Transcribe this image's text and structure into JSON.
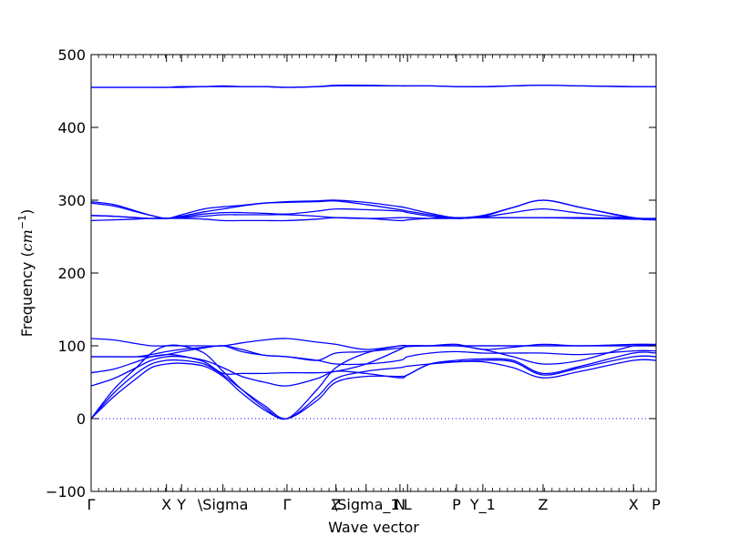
{
  "chart_data": {
    "type": "line",
    "title": "",
    "xlabel": "Wave vector",
    "ylabel_prefix": "Frequency (",
    "ylabel_unit": "cm",
    "ylabel_exp": "−1",
    "ylabel_suffix": ")",
    "ylim": [
      -100,
      500
    ],
    "yticks": [
      -100,
      0,
      100,
      200,
      300,
      400,
      500
    ],
    "xlim": [
      0,
      7.5
    ],
    "grid": false,
    "legend": "none",
    "line_color": "#0000ff",
    "zero_line": 0,
    "high_points": [
      {
        "label": "Γ",
        "x": 0.0
      },
      {
        "label": "X",
        "x": 1.0
      },
      {
        "label": "Y",
        "x": 1.2
      },
      {
        "label": "\\Sigma",
        "x": 1.75
      },
      {
        "label": "Γ",
        "x": 2.6
      },
      {
        "label": "Z",
        "x": 3.25
      },
      {
        "label": "\\Sigma_1",
        "x": 3.65
      },
      {
        "label": "N",
        "x": 4.1
      },
      {
        "label": "L",
        "x": 4.2
      },
      {
        "label": "P",
        "x": 4.85
      },
      {
        "label": "Y_1",
        "x": 5.2
      },
      {
        "label": "Z",
        "x": 6.0
      },
      {
        "label": "X",
        "x": 7.2
      },
      {
        "label": "P",
        "x": 7.5
      }
    ],
    "series": [
      {
        "x": [
          0,
          0.3,
          0.6,
          0.8,
          1.0,
          1.2,
          1.5,
          1.75,
          2.0,
          2.3,
          2.6,
          3.0,
          3.25,
          3.65,
          4.1,
          4.2,
          4.5,
          4.85,
          5.2,
          5.6,
          6.0,
          6.5,
          7.2,
          7.5
        ],
        "y": [
          0,
          40,
          70,
          90,
          100,
          100,
          90,
          65,
          40,
          15,
          0,
          40,
          70,
          90,
          100,
          100,
          100,
          100,
          95,
          85,
          75,
          80,
          100,
          100
        ]
      },
      {
        "x": [
          0,
          0.3,
          0.6,
          0.8,
          1.0,
          1.2,
          1.5,
          1.75,
          2.0,
          2.3,
          2.6,
          3.0,
          3.25,
          3.65,
          4.1,
          4.2,
          4.5,
          4.85,
          5.2,
          5.6,
          6.0,
          6.5,
          7.2,
          7.5
        ],
        "y": [
          0,
          35,
          62,
          75,
          80,
          80,
          75,
          60,
          40,
          18,
          0,
          30,
          55,
          65,
          70,
          72,
          75,
          78,
          80,
          78,
          60,
          70,
          85,
          85
        ]
      },
      {
        "x": [
          0,
          0.3,
          0.6,
          0.8,
          1.0,
          1.2,
          1.5,
          1.75,
          2.0,
          2.3,
          2.6,
          3.0,
          3.25,
          3.65,
          4.1,
          4.2,
          4.5,
          4.85,
          5.2,
          5.6,
          6.0,
          6.5,
          7.2,
          7.5
        ],
        "y": [
          0,
          30,
          55,
          70,
          75,
          76,
          72,
          58,
          35,
          12,
          0,
          25,
          50,
          58,
          58,
          60,
          75,
          78,
          78,
          70,
          56,
          65,
          80,
          80
        ]
      },
      {
        "x": [
          0,
          0.3,
          0.6,
          0.8,
          1.0,
          1.2,
          1.5,
          1.75,
          2.0,
          2.3,
          2.6,
          3.0,
          3.25,
          3.65,
          4.1,
          4.2,
          4.5,
          4.85,
          5.2,
          5.6,
          6.0,
          6.5,
          7.2,
          7.5
        ],
        "y": [
          45,
          55,
          70,
          80,
          85,
          85,
          80,
          70,
          58,
          50,
          45,
          55,
          65,
          62,
          56,
          60,
          75,
          80,
          82,
          80,
          62,
          72,
          90,
          90
        ]
      },
      {
        "x": [
          0,
          0.3,
          0.6,
          0.8,
          1.0,
          1.2,
          1.5,
          1.75,
          2.0,
          2.3,
          2.6,
          3.0,
          3.25,
          3.65,
          4.1,
          4.2,
          4.5,
          4.85,
          5.2,
          5.6,
          6.0,
          6.5,
          7.2,
          7.5
        ],
        "y": [
          63,
          68,
          78,
          85,
          88,
          86,
          78,
          62,
          62,
          62,
          63,
          63,
          65,
          75,
          95,
          100,
          100,
          100,
          100,
          100,
          100,
          100,
          100,
          100
        ]
      },
      {
        "x": [
          0,
          0.3,
          0.6,
          0.8,
          1.0,
          1.2,
          1.5,
          1.75,
          2.0,
          2.3,
          2.6,
          3.0,
          3.25,
          3.65,
          4.1,
          4.2,
          4.5,
          4.85,
          5.2,
          5.6,
          6.0,
          6.5,
          7.2,
          7.5
        ],
        "y": [
          85,
          85,
          85,
          88,
          92,
          95,
          98,
          100,
          95,
          87,
          85,
          80,
          75,
          75,
          80,
          85,
          90,
          92,
          90,
          90,
          90,
          88,
          93,
          93
        ]
      },
      {
        "x": [
          0,
          0.3,
          0.6,
          0.8,
          1.0,
          1.2,
          1.5,
          1.75,
          2.0,
          2.3,
          2.6,
          3.0,
          3.25,
          3.65,
          4.1,
          4.2,
          4.5,
          4.85,
          5.2,
          5.6,
          6.0,
          6.5,
          7.2,
          7.5
        ],
        "y": [
          110,
          108,
          103,
          100,
          100,
          100,
          100,
          100,
          104,
          108,
          110,
          105,
          102,
          95,
          100,
          100,
          100,
          100,
          100,
          100,
          100,
          100,
          100,
          100
        ]
      },
      {
        "x": [
          0,
          0.3,
          0.6,
          0.8,
          1.0,
          1.2,
          1.5,
          1.75,
          2.0,
          2.3,
          2.6,
          3.0,
          3.25,
          3.65,
          4.1,
          4.2,
          4.5,
          4.85,
          5.2,
          5.6,
          6.0,
          6.5,
          7.2,
          7.5
        ],
        "y": [
          85,
          85,
          85,
          85,
          88,
          92,
          97,
          100,
          92,
          87,
          85,
          80,
          90,
          92,
          97,
          99,
          100,
          102,
          95,
          98,
          102,
          100,
          102,
          102
        ]
      },
      {
        "x": [
          0,
          0.3,
          0.6,
          0.8,
          1.0,
          1.2,
          1.5,
          1.75,
          2.0,
          2.3,
          2.6,
          3.0,
          3.25,
          3.65,
          4.1,
          4.2,
          4.5,
          4.85,
          5.2,
          5.6,
          6.0,
          6.5,
          7.2,
          7.5
        ],
        "y": [
          272,
          273,
          274,
          275,
          275,
          275,
          274,
          272,
          272,
          272,
          272,
          274,
          276,
          275,
          272,
          273,
          275,
          276,
          276,
          276,
          276,
          275,
          274,
          274
        ]
      },
      {
        "x": [
          0,
          0.3,
          0.6,
          0.8,
          1.0,
          1.2,
          1.5,
          1.75,
          2.0,
          2.3,
          2.6,
          3.0,
          3.25,
          3.65,
          4.1,
          4.2,
          4.5,
          4.85,
          5.2,
          5.6,
          6.0,
          6.5,
          7.2,
          7.5
        ],
        "y": [
          279,
          278,
          276,
          275,
          275,
          276,
          278,
          280,
          280,
          280,
          280,
          278,
          276,
          275,
          276,
          276,
          275,
          275,
          276,
          276,
          276,
          276,
          275,
          275
        ]
      },
      {
        "x": [
          0,
          0.3,
          0.6,
          0.8,
          1.0,
          1.2,
          1.5,
          1.75,
          2.0,
          2.3,
          2.6,
          3.0,
          3.25,
          3.65,
          4.1,
          4.2,
          4.5,
          4.85,
          5.2,
          5.6,
          6.0,
          6.5,
          7.2,
          7.5
        ],
        "y": [
          279,
          278,
          276,
          275,
          275,
          277,
          281,
          283,
          283,
          282,
          281,
          285,
          288,
          287,
          285,
          283,
          278,
          275,
          277,
          283,
          288,
          282,
          275,
          275
        ]
      },
      {
        "x": [
          0,
          0.3,
          0.6,
          0.8,
          1.0,
          1.2,
          1.5,
          1.75,
          2.0,
          2.3,
          2.6,
          3.0,
          3.25,
          3.65,
          4.1,
          4.2,
          4.5,
          4.85,
          5.2,
          5.6,
          6.0,
          6.5,
          7.2,
          7.5
        ],
        "y": [
          296,
          292,
          284,
          279,
          275,
          278,
          284,
          288,
          292,
          296,
          297,
          298,
          299,
          294,
          287,
          285,
          280,
          275,
          278,
          290,
          300,
          290,
          275,
          273
        ]
      },
      {
        "x": [
          0,
          0.3,
          0.6,
          0.8,
          1.0,
          1.2,
          1.5,
          1.75,
          2.0,
          2.3,
          2.6,
          3.0,
          3.25,
          3.65,
          4.1,
          4.2,
          4.5,
          4.85,
          5.2,
          5.6,
          6.0,
          6.5,
          7.2,
          7.5
        ],
        "y": [
          298,
          294,
          285,
          279,
          275,
          280,
          288,
          291,
          293,
          296,
          298,
          299,
          300,
          297,
          291,
          289,
          282,
          276,
          279,
          290,
          300,
          290,
          276,
          274
        ]
      },
      {
        "x": [
          0,
          0.3,
          0.6,
          0.8,
          1.0,
          1.2,
          1.5,
          1.75,
          2.0,
          2.3,
          2.6,
          3.0,
          3.25,
          3.65,
          4.1,
          4.2,
          4.5,
          4.85,
          5.2,
          5.6,
          6.0,
          6.5,
          7.2,
          7.5
        ],
        "y": [
          455,
          455,
          455,
          455,
          455,
          456,
          456,
          457,
          456,
          456,
          455,
          456,
          458,
          458,
          457,
          457,
          457,
          456,
          456,
          457,
          458,
          457,
          456,
          456
        ]
      },
      {
        "x": [
          0,
          0.3,
          0.6,
          0.8,
          1.0,
          1.2,
          1.5,
          1.75,
          2.0,
          2.3,
          2.6,
          3.0,
          3.25,
          3.65,
          4.1,
          4.2,
          4.5,
          4.85,
          5.2,
          5.6,
          6.0,
          6.5,
          7.2,
          7.5
        ],
        "y": [
          455,
          455,
          455,
          455,
          455,
          455,
          456,
          456,
          456,
          456,
          455,
          456,
          457,
          457,
          457,
          457,
          457,
          456,
          456,
          457,
          458,
          457,
          456,
          456
        ]
      }
    ]
  }
}
